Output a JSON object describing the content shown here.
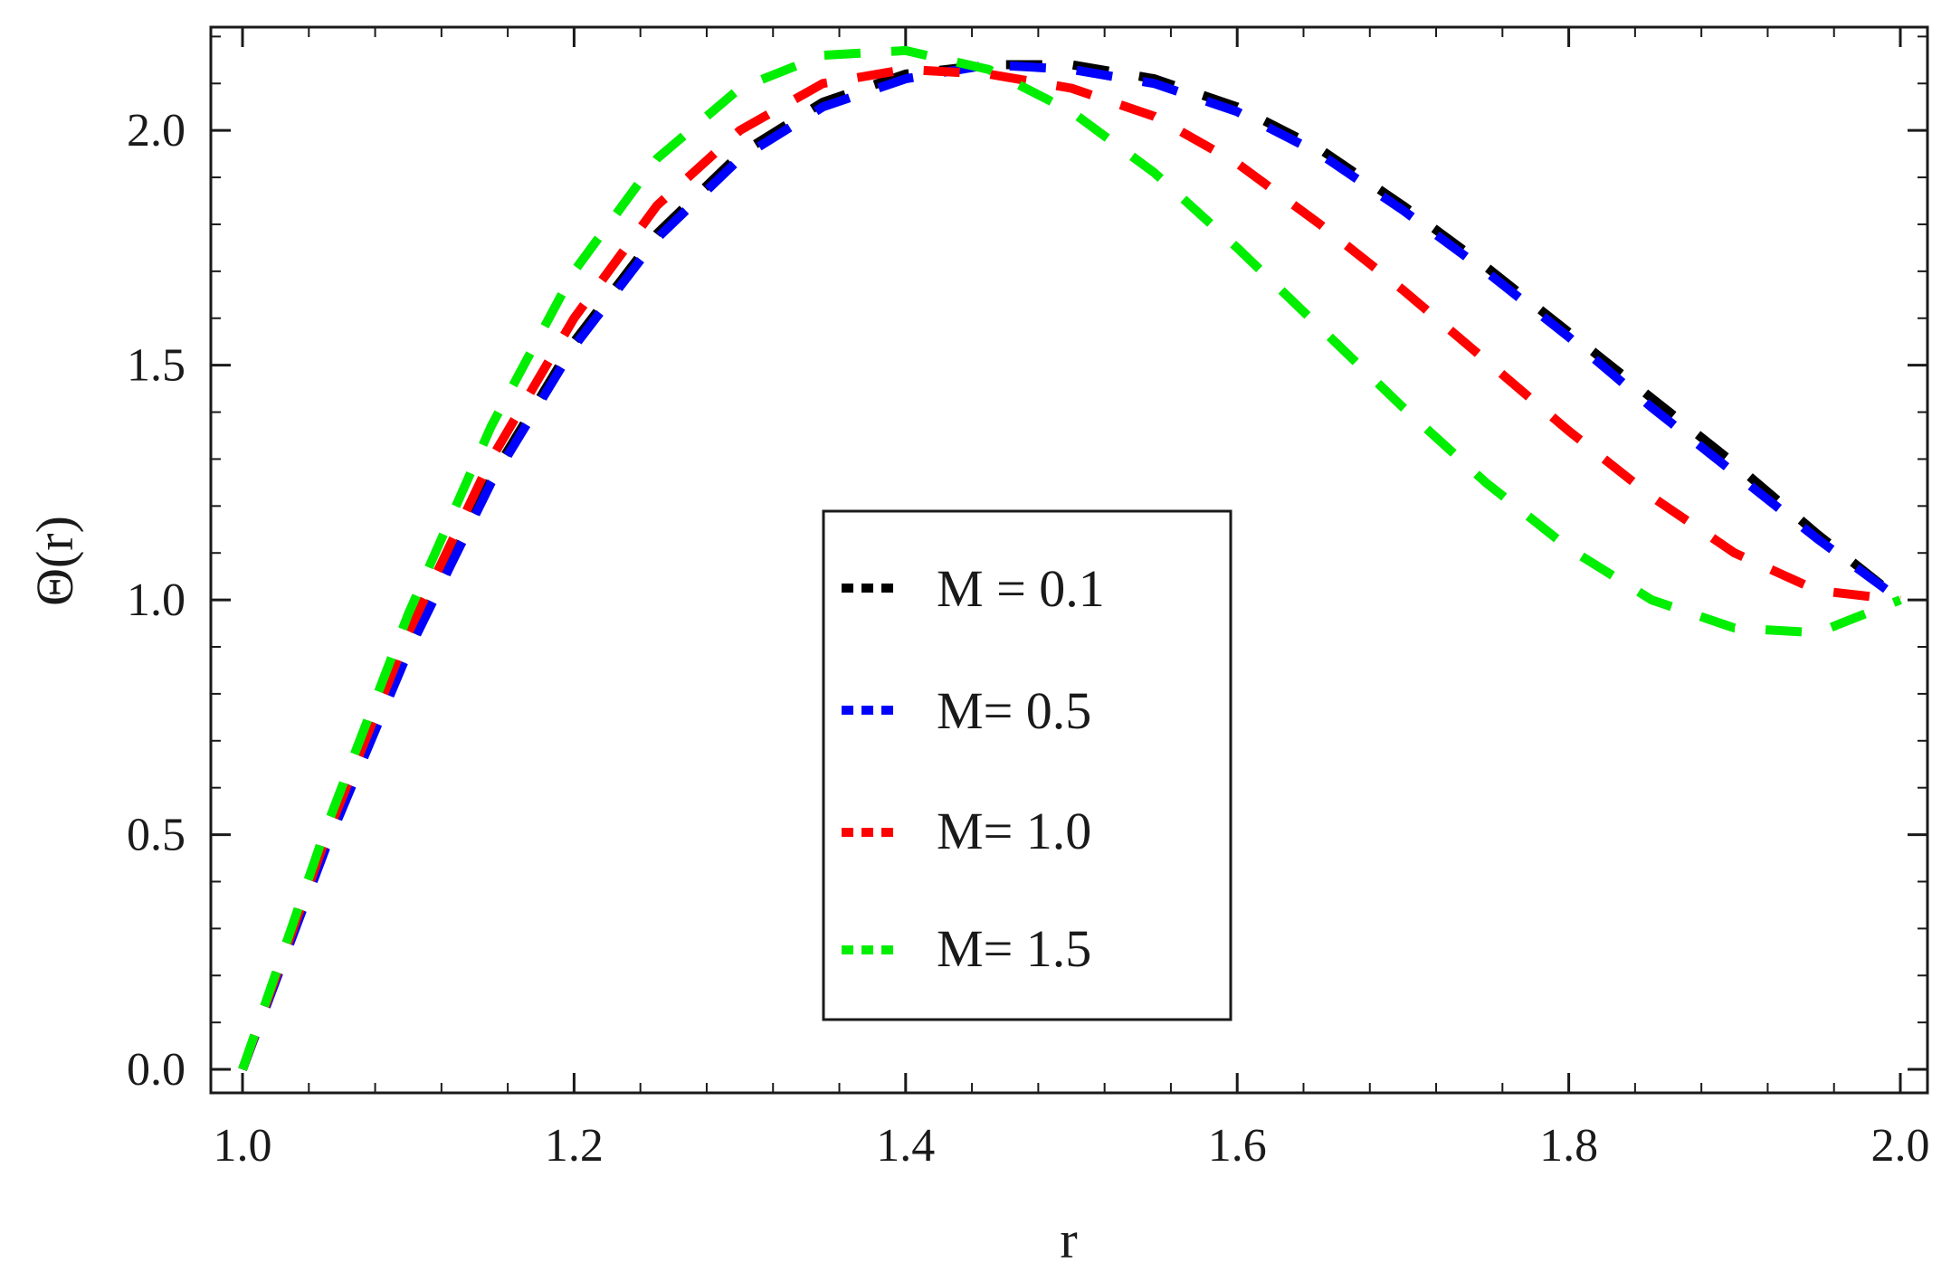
{
  "chart_data": {
    "type": "line",
    "xlabel": "r",
    "ylabel": "Θ(r)",
    "xlim": [
      1.0,
      2.0
    ],
    "ylim": [
      -0.05,
      2.22
    ],
    "xticks": [
      1.0,
      1.2,
      1.4,
      1.6,
      1.8,
      2.0
    ],
    "xtick_labels": [
      "1.0",
      "1.2",
      "1.4",
      "1.6",
      "1.8",
      "2.0"
    ],
    "yticks": [
      0.0,
      0.5,
      1.0,
      1.5,
      2.0
    ],
    "ytick_labels": [
      "0.0",
      "0.5",
      "1.0",
      "1.5",
      "2.0"
    ],
    "grid": false,
    "legend_position": "center",
    "line_style": "dashed",
    "x": [
      1.0,
      1.05,
      1.1,
      1.15,
      1.2,
      1.25,
      1.3,
      1.35,
      1.4,
      1.45,
      1.5,
      1.55,
      1.6,
      1.65,
      1.7,
      1.75,
      1.8,
      1.85,
      1.9,
      1.95,
      2.0
    ],
    "series": [
      {
        "name": "M = 0.1",
        "color": "#000000",
        "values": [
          0.0,
          0.48,
          0.9,
          1.26,
          1.55,
          1.78,
          1.95,
          2.06,
          2.12,
          2.14,
          2.14,
          2.11,
          2.05,
          1.96,
          1.84,
          1.71,
          1.57,
          1.43,
          1.29,
          1.14,
          1.0
        ]
      },
      {
        "name": "M= 0.5",
        "color": "#0000ff",
        "values": [
          0.0,
          0.47,
          0.89,
          1.25,
          1.54,
          1.77,
          1.94,
          2.05,
          2.11,
          2.14,
          2.13,
          2.1,
          2.04,
          1.95,
          1.83,
          1.7,
          1.56,
          1.41,
          1.27,
          1.13,
          1.0
        ]
      },
      {
        "name": "M= 1.0",
        "color": "#ff0000",
        "values": [
          0.0,
          0.49,
          0.93,
          1.3,
          1.6,
          1.84,
          2.0,
          2.1,
          2.13,
          2.12,
          2.09,
          2.03,
          1.93,
          1.8,
          1.66,
          1.51,
          1.36,
          1.22,
          1.1,
          1.02,
          1.0
        ]
      },
      {
        "name": "M= 1.5",
        "color": "#00ee00",
        "values": [
          0.0,
          0.51,
          0.97,
          1.37,
          1.7,
          1.94,
          2.09,
          2.16,
          2.17,
          2.13,
          2.04,
          1.91,
          1.75,
          1.58,
          1.41,
          1.25,
          1.11,
          1.0,
          0.94,
          0.93,
          1.0
        ]
      }
    ]
  }
}
